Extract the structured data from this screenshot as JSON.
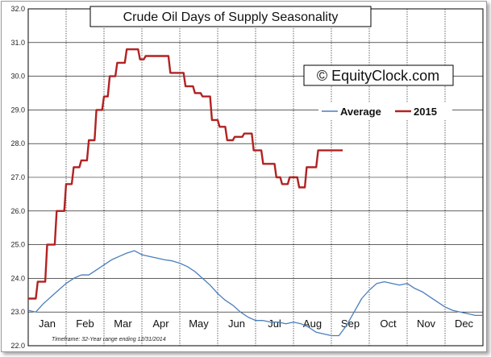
{
  "chart_data": {
    "type": "line",
    "title": "Crude Oil Days of Supply Seasonality",
    "watermark": "© EquityClock.com",
    "footnote": "Timeframe: 32-Year range ending 12/31/2014",
    "ylim": [
      22.0,
      32.0
    ],
    "yticks": [
      "22.0",
      "23.0",
      "24.0",
      "25.0",
      "26.0",
      "27.0",
      "28.0",
      "29.0",
      "30.0",
      "31.0",
      "32.0"
    ],
    "xlim": [
      0,
      12
    ],
    "months": [
      "Jan",
      "Feb",
      "Mar",
      "Apr",
      "May",
      "Jun",
      "Jul",
      "Aug",
      "Sep",
      "Oct",
      "Nov",
      "Dec"
    ],
    "grid": true,
    "legend": {
      "placement": "right",
      "entries": [
        "Average",
        "2015"
      ]
    },
    "colors": {
      "Average": "#4a7ebb",
      "2015": "#b22222"
    },
    "series": [
      {
        "name": "Average",
        "x": [
          0.0,
          0.2,
          0.4,
          0.6,
          0.8,
          1.0,
          1.2,
          1.4,
          1.6,
          1.8,
          2.0,
          2.2,
          2.4,
          2.6,
          2.8,
          3.0,
          3.2,
          3.4,
          3.6,
          3.8,
          4.0,
          4.2,
          4.4,
          4.6,
          4.8,
          5.0,
          5.2,
          5.4,
          5.6,
          5.8,
          6.0,
          6.2,
          6.4,
          6.6,
          6.8,
          7.0,
          7.2,
          7.4,
          7.6,
          7.8,
          8.0,
          8.2,
          8.4,
          8.6,
          8.8,
          9.0,
          9.2,
          9.4,
          9.6,
          9.8,
          10.0,
          10.2,
          10.4,
          10.6,
          10.8,
          11.0,
          11.2,
          11.4,
          11.6,
          11.8,
          12.0
        ],
        "values": [
          23.05,
          23.0,
          23.25,
          23.45,
          23.65,
          23.85,
          24.0,
          24.1,
          24.1,
          24.25,
          24.4,
          24.55,
          24.65,
          24.75,
          24.82,
          24.7,
          24.65,
          24.6,
          24.55,
          24.52,
          24.45,
          24.35,
          24.2,
          24.0,
          23.8,
          23.55,
          23.35,
          23.2,
          23.0,
          22.85,
          22.75,
          22.75,
          22.7,
          22.7,
          22.65,
          22.7,
          22.65,
          22.55,
          22.4,
          22.35,
          22.3,
          22.3,
          22.6,
          23.0,
          23.4,
          23.65,
          23.85,
          23.9,
          23.85,
          23.8,
          23.85,
          23.7,
          23.6,
          23.45,
          23.3,
          23.15,
          23.05,
          23.0,
          22.95,
          22.9,
          22.9
        ]
      },
      {
        "name": "2015",
        "x": [
          0.0,
          0.2,
          0.25,
          0.45,
          0.5,
          0.7,
          0.75,
          0.95,
          1.0,
          1.15,
          1.2,
          1.35,
          1.4,
          1.55,
          1.6,
          1.75,
          1.8,
          1.95,
          2.0,
          2.1,
          2.15,
          2.3,
          2.35,
          2.55,
          2.6,
          2.9,
          2.95,
          3.05,
          3.1,
          3.2,
          3.25,
          3.7,
          3.75,
          4.1,
          4.15,
          4.35,
          4.4,
          4.55,
          4.6,
          4.8,
          4.85,
          5.0,
          5.05,
          5.2,
          5.25,
          5.4,
          5.45,
          5.65,
          5.7,
          5.9,
          5.95,
          6.15,
          6.2,
          6.5,
          6.55,
          6.65,
          6.7,
          6.85,
          6.9,
          7.1,
          7.15,
          7.3,
          7.35,
          7.6,
          7.65,
          7.85,
          7.9,
          8.05,
          8.1,
          8.3
        ],
        "values": [
          23.4,
          23.4,
          23.9,
          23.9,
          25.0,
          25.0,
          26.0,
          26.0,
          26.8,
          26.8,
          27.3,
          27.3,
          27.5,
          27.5,
          28.1,
          28.1,
          29.0,
          29.0,
          29.4,
          29.4,
          30.0,
          30.0,
          30.4,
          30.4,
          30.8,
          30.8,
          30.5,
          30.5,
          30.6,
          30.6,
          30.6,
          30.6,
          30.1,
          30.1,
          29.7,
          29.7,
          29.5,
          29.5,
          29.4,
          29.4,
          28.7,
          28.7,
          28.5,
          28.5,
          28.1,
          28.1,
          28.2,
          28.2,
          28.3,
          28.3,
          27.8,
          27.8,
          27.4,
          27.4,
          27.0,
          27.0,
          26.8,
          26.8,
          27.0,
          27.0,
          26.7,
          26.7,
          27.3,
          27.3,
          27.8,
          27.8,
          27.8,
          27.8,
          27.8,
          27.8
        ]
      }
    ]
  }
}
